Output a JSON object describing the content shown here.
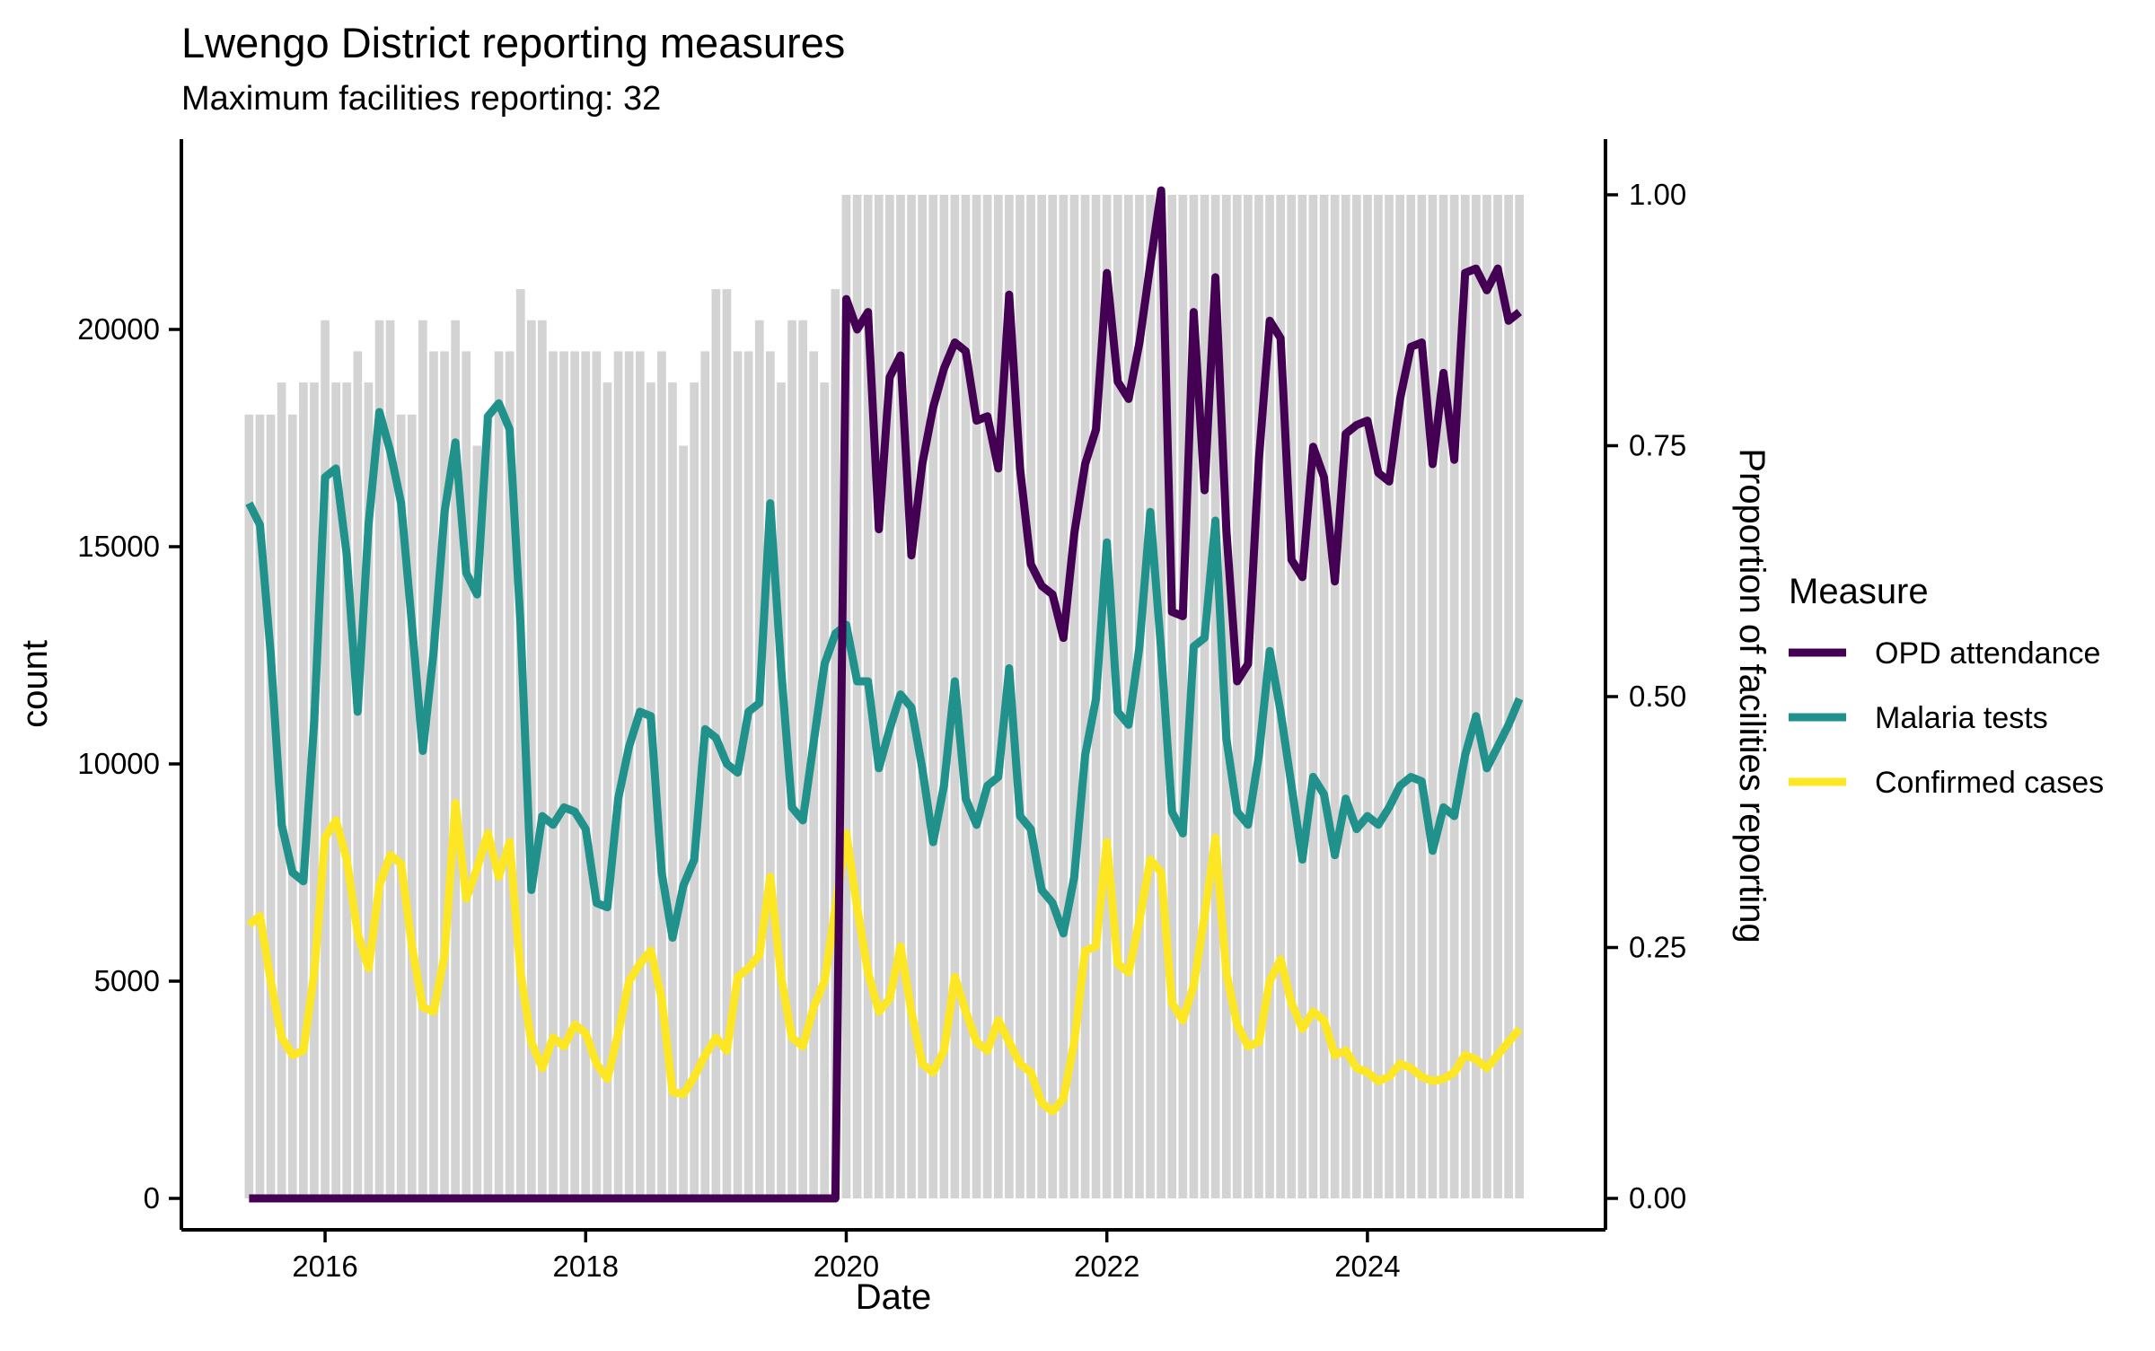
{
  "title": "Lwengo District reporting measures",
  "subtitle": "Maximum facilities reporting: 32",
  "chart_data": {
    "type": "line+bar",
    "x_unit": "month",
    "months": [
      "2015-06",
      "2015-07",
      "2015-08",
      "2015-09",
      "2015-10",
      "2015-11",
      "2015-12",
      "2016-01",
      "2016-02",
      "2016-03",
      "2016-04",
      "2016-05",
      "2016-06",
      "2016-07",
      "2016-08",
      "2016-09",
      "2016-10",
      "2016-11",
      "2016-12",
      "2017-01",
      "2017-02",
      "2017-03",
      "2017-04",
      "2017-05",
      "2017-06",
      "2017-07",
      "2017-08",
      "2017-09",
      "2017-10",
      "2017-11",
      "2017-12",
      "2018-01",
      "2018-02",
      "2018-03",
      "2018-04",
      "2018-05",
      "2018-06",
      "2018-07",
      "2018-08",
      "2018-09",
      "2018-10",
      "2018-11",
      "2018-12",
      "2019-01",
      "2019-02",
      "2019-03",
      "2019-04",
      "2019-05",
      "2019-06",
      "2019-07",
      "2019-08",
      "2019-09",
      "2019-10",
      "2019-11",
      "2019-12",
      "2020-01",
      "2020-02",
      "2020-03",
      "2020-04",
      "2020-05",
      "2020-06",
      "2020-07",
      "2020-08",
      "2020-09",
      "2020-10",
      "2020-11",
      "2020-12",
      "2021-01",
      "2021-02",
      "2021-03",
      "2021-04",
      "2021-05",
      "2021-06",
      "2021-07",
      "2021-08",
      "2021-09",
      "2021-10",
      "2021-11",
      "2021-12",
      "2022-01",
      "2022-02",
      "2022-03",
      "2022-04",
      "2022-05",
      "2022-06",
      "2022-07",
      "2022-08",
      "2022-09",
      "2022-10",
      "2022-11",
      "2022-12",
      "2023-01",
      "2023-02",
      "2023-03",
      "2023-04",
      "2023-05",
      "2023-06",
      "2023-07",
      "2023-08",
      "2023-09",
      "2023-10",
      "2023-11",
      "2023-12",
      "2024-01",
      "2024-02",
      "2024-03",
      "2024-04",
      "2024-05",
      "2024-06",
      "2024-07",
      "2024-08",
      "2024-09",
      "2024-10",
      "2024-11",
      "2024-12",
      "2025-01",
      "2025-02",
      "2025-03"
    ],
    "bars": {
      "name": "Proportion of facilities reporting",
      "axis": "right",
      "color": "#D3D3D3",
      "values": [
        0.781,
        0.781,
        0.781,
        0.813,
        0.781,
        0.813,
        0.813,
        0.875,
        0.813,
        0.813,
        0.844,
        0.813,
        0.875,
        0.875,
        0.781,
        0.781,
        0.875,
        0.844,
        0.844,
        0.875,
        0.844,
        0.75,
        0.781,
        0.844,
        0.844,
        0.906,
        0.875,
        0.875,
        0.844,
        0.844,
        0.844,
        0.844,
        0.844,
        0.813,
        0.844,
        0.844,
        0.844,
        0.813,
        0.844,
        0.813,
        0.75,
        0.813,
        0.844,
        0.906,
        0.906,
        0.844,
        0.844,
        0.875,
        0.844,
        0.813,
        0.875,
        0.875,
        0.844,
        0.813,
        0.906,
        1.0,
        1.0,
        1.0,
        1.0,
        1.0,
        1.0,
        1.0,
        1.0,
        1.0,
        1.0,
        1.0,
        1.0,
        1.0,
        1.0,
        1.0,
        1.0,
        1.0,
        1.0,
        1.0,
        1.0,
        1.0,
        1.0,
        1.0,
        1.0,
        1.0,
        1.0,
        1.0,
        1.0,
        1.0,
        1.0,
        1.0,
        1.0,
        1.0,
        1.0,
        1.0,
        1.0,
        1.0,
        1.0,
        1.0,
        1.0,
        1.0,
        1.0,
        1.0,
        1.0,
        1.0,
        1.0,
        1.0,
        1.0,
        1.0,
        1.0,
        1.0,
        1.0,
        1.0,
        1.0,
        1.0,
        1.0,
        1.0,
        1.0,
        1.0,
        1.0,
        1.0,
        1.0,
        1.0
      ]
    },
    "series": [
      {
        "name": "OPD attendance",
        "color": "#440154",
        "axis": "left",
        "values": [
          0,
          0,
          0,
          0,
          0,
          0,
          0,
          0,
          0,
          0,
          0,
          0,
          0,
          0,
          0,
          0,
          0,
          0,
          0,
          0,
          0,
          0,
          0,
          0,
          0,
          0,
          0,
          0,
          0,
          0,
          0,
          0,
          0,
          0,
          0,
          0,
          0,
          0,
          0,
          0,
          0,
          0,
          0,
          0,
          0,
          0,
          0,
          0,
          0,
          0,
          0,
          0,
          0,
          0,
          0,
          20700,
          20000,
          20400,
          15400,
          18900,
          19400,
          14800,
          16900,
          18200,
          19100,
          19700,
          19500,
          17900,
          18000,
          16800,
          20800,
          16800,
          14600,
          14100,
          13900,
          12900,
          15300,
          16900,
          17700,
          21300,
          18800,
          18400,
          19700,
          21500,
          23200,
          13500,
          13400,
          20400,
          16300,
          21200,
          15400,
          11900,
          12300,
          17000,
          20200,
          19800,
          14700,
          14300,
          17300,
          16600,
          14200,
          17600,
          17800,
          17900,
          16700,
          16500,
          18400,
          19600,
          19700,
          16900,
          19000,
          17000,
          21300,
          21400,
          20900,
          21400,
          20200,
          20400
        ]
      },
      {
        "name": "Malaria tests",
        "color": "#21918C",
        "axis": "left",
        "values": [
          16000,
          15500,
          12500,
          8600,
          7500,
          7300,
          11000,
          16600,
          16800,
          14800,
          11200,
          15500,
          18100,
          17200,
          16000,
          13200,
          10300,
          12600,
          15800,
          17400,
          14400,
          13900,
          18000,
          18300,
          17700,
          13200,
          7100,
          8800,
          8600,
          9000,
          8900,
          8500,
          6800,
          6700,
          9200,
          10400,
          11200,
          11100,
          7500,
          6000,
          7200,
          7800,
          10800,
          10600,
          10000,
          9800,
          11200,
          11400,
          16000,
          12200,
          9000,
          8700,
          10500,
          12300,
          13000,
          13200,
          11900,
          11900,
          9900,
          10800,
          11600,
          11300,
          9900,
          8200,
          9500,
          11900,
          9200,
          8600,
          9500,
          9700,
          12200,
          8800,
          8500,
          7100,
          6800,
          6100,
          7400,
          10200,
          11500,
          15100,
          11200,
          10900,
          12700,
          15800,
          12600,
          8900,
          8400,
          12700,
          12900,
          15600,
          10600,
          8900,
          8600,
          10200,
          12600,
          11200,
          9500,
          7800,
          9700,
          9300,
          7900,
          9200,
          8500,
          8800,
          8600,
          9000,
          9500,
          9700,
          9600,
          8000,
          9000,
          8800,
          10200,
          11100,
          9900,
          10400,
          10900,
          11500
        ]
      },
      {
        "name": "Confirmed cases",
        "color": "#FDE725",
        "axis": "left",
        "values": [
          6300,
          6500,
          5000,
          3700,
          3300,
          3400,
          5200,
          8300,
          8700,
          7800,
          6100,
          5300,
          7200,
          7900,
          7700,
          5800,
          4400,
          4300,
          5600,
          9100,
          6900,
          7600,
          8400,
          7400,
          8200,
          5200,
          3600,
          3000,
          3700,
          3500,
          4000,
          3800,
          3100,
          2750,
          3800,
          5000,
          5400,
          5700,
          4600,
          2450,
          2400,
          2800,
          3300,
          3700,
          3400,
          5100,
          5300,
          5600,
          7400,
          5100,
          3700,
          3500,
          4400,
          5000,
          6700,
          8400,
          6700,
          5200,
          4300,
          4600,
          5800,
          4300,
          3100,
          2900,
          3400,
          5100,
          4300,
          3600,
          3400,
          4100,
          3600,
          3100,
          2900,
          2200,
          2000,
          2300,
          3600,
          5700,
          5800,
          8200,
          5400,
          5200,
          6400,
          7800,
          7500,
          4500,
          4100,
          4900,
          6500,
          8300,
          5200,
          4000,
          3500,
          3600,
          5000,
          5500,
          4500,
          3900,
          4300,
          4100,
          3300,
          3400,
          3000,
          2900,
          2700,
          2800,
          3100,
          3000,
          2800,
          2700,
          2750,
          2900,
          3300,
          3200,
          3000,
          3300,
          3600,
          3900
        ]
      }
    ],
    "axes": {
      "x": {
        "label": "Date",
        "ticks": [
          "2016",
          "2018",
          "2020",
          "2022",
          "2024"
        ],
        "tick_years": [
          2016,
          2018,
          2020,
          2022,
          2024
        ]
      },
      "y_left": {
        "label": "count",
        "ticks": [
          0,
          5000,
          10000,
          15000,
          20000
        ],
        "range": [
          0,
          23500
        ],
        "grid": false
      },
      "y_right": {
        "label": "Proportion of facilities reporting",
        "ticks": [
          "0.00",
          "0.25",
          "0.50",
          "0.75",
          "1.00"
        ],
        "tick_values": [
          0,
          0.25,
          0.5,
          0.75,
          1.0
        ],
        "range": [
          0,
          1
        ]
      }
    },
    "legend": {
      "title": "Measure",
      "position": "right"
    }
  }
}
